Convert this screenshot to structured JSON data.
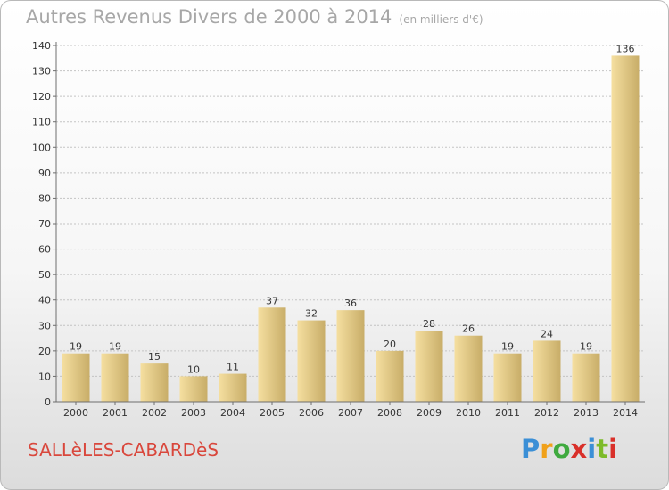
{
  "title": "Autres Revenus Divers de 2000 à 2014",
  "title_unit": "(en milliers d'€)",
  "commune": "SALLèLES-CABARDèS",
  "logo": {
    "letters": [
      "P",
      "r",
      "o",
      "x",
      "i",
      "t",
      "i"
    ],
    "colors": [
      "#3b8fd6",
      "#f0a11a",
      "#3faa3f",
      "#d9302a",
      "#3b8fd6",
      "#7dbb2a",
      "#d9302a"
    ]
  },
  "colors": {
    "bar_light": "#f5dfa0",
    "bar_dark": "#c8ad68",
    "axis": "#6e6e6e",
    "grid": "#c4c4c4",
    "label": "#333333"
  },
  "chart_data": {
    "type": "bar",
    "categories": [
      "2000",
      "2001",
      "2002",
      "2003",
      "2004",
      "2005",
      "2006",
      "2007",
      "2008",
      "2009",
      "2010",
      "2011",
      "2012",
      "2013",
      "2014"
    ],
    "values": [
      19,
      19,
      15,
      10,
      11,
      37,
      32,
      36,
      20,
      28,
      26,
      19,
      24,
      19,
      136
    ],
    "title": "Autres Revenus Divers de 2000 à 2014",
    "xlabel": "",
    "ylabel": "",
    "ylim": [
      0,
      140
    ],
    "yticks": [
      0,
      10,
      20,
      30,
      40,
      50,
      60,
      70,
      80,
      90,
      100,
      110,
      120,
      130,
      140
    ],
    "grid": true,
    "data_labels": true
  }
}
